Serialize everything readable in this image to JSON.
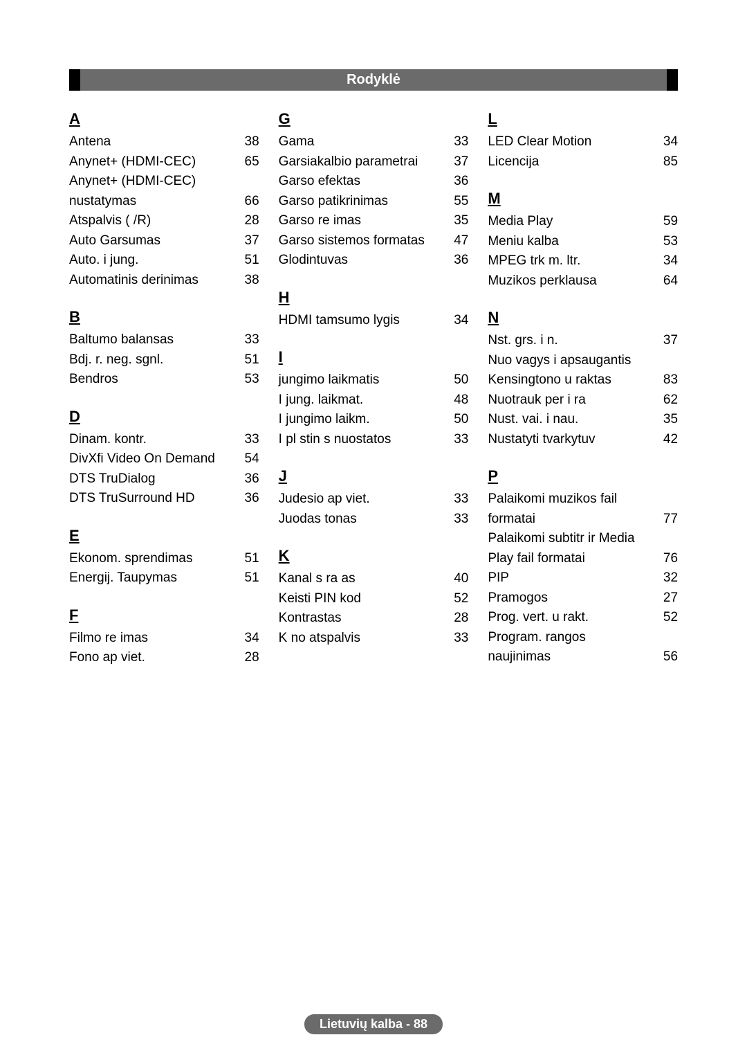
{
  "title": "Rodyklė",
  "footer": "Lietuvių kalba - 88",
  "colors": {
    "bar_bg": "#6b6b6b",
    "bar_border": "#000000",
    "text": "#000000",
    "title_text": "#ffffff",
    "page_bg": "#ffffff"
  },
  "typography": {
    "title_fontsize": 20,
    "letter_fontsize": 22,
    "entry_fontsize": 19,
    "footer_fontsize": 18
  },
  "columns": [
    {
      "sections": [
        {
          "letter": "A",
          "entries": [
            {
              "label": "Antena",
              "page": "38"
            },
            {
              "label": "Anynet+ (HDMI-CEC)",
              "page": "65"
            },
            {
              "label": "Anynet+ (HDMI-CEC) nustatymas",
              "page": "66"
            },
            {
              "label": "Atspalvis ( /R)",
              "page": "28"
            },
            {
              "label": "Auto Garsumas",
              "page": "37"
            },
            {
              "label": "Auto. i jung.",
              "page": "51"
            },
            {
              "label": "Automatinis derinimas",
              "page": "38"
            }
          ]
        },
        {
          "letter": "B",
          "entries": [
            {
              "label": "Baltumo balansas",
              "page": "33"
            },
            {
              "label": "Bdj. r. neg. sgnl.",
              "page": "51"
            },
            {
              "label": "Bendros",
              "page": "53"
            }
          ]
        },
        {
          "letter": "D",
          "entries": [
            {
              "label": "Dinam. kontr.",
              "page": "33"
            },
            {
              "label": "DivXfi Video On Demand",
              "page": "54"
            },
            {
              "label": "DTS TruDialog",
              "page": "36"
            },
            {
              "label": "DTS TruSurround HD",
              "page": "36"
            }
          ]
        },
        {
          "letter": "E",
          "entries": [
            {
              "label": "Ekonom. sprendimas",
              "page": "51"
            },
            {
              "label": "Energij. Taupymas",
              "page": "51"
            }
          ]
        },
        {
          "letter": "F",
          "entries": [
            {
              "label": "Filmo re imas",
              "page": "34"
            },
            {
              "label": "Fono ap viet.",
              "page": "28"
            }
          ]
        }
      ]
    },
    {
      "sections": [
        {
          "letter": "G",
          "entries": [
            {
              "label": "Gama",
              "page": "33"
            },
            {
              "label": "Garsiakalbio parametrai",
              "page": "37"
            },
            {
              "label": "Garso efektas",
              "page": "36"
            },
            {
              "label": "Garso patikrinimas",
              "page": "55"
            },
            {
              "label": "Garso re imas",
              "page": "35"
            },
            {
              "label": "Garso sistemos formatas",
              "page": "47"
            },
            {
              "label": "Glodintuvas",
              "page": "36"
            }
          ]
        },
        {
          "letter": "H",
          "entries": [
            {
              "label": "HDMI tamsumo lygis",
              "page": "34"
            }
          ]
        },
        {
          "letter": "I",
          "entries": [
            {
              "label": " jungimo laikmatis",
              "page": "50"
            },
            {
              "label": "I jung. laikmat.",
              "page": "48"
            },
            {
              "label": "I jungimo laikm.",
              "page": "50"
            },
            {
              "label": "I pl stin s nuostatos",
              "page": "33"
            }
          ]
        },
        {
          "letter": "J",
          "entries": [
            {
              "label": "Judesio ap viet.",
              "page": "33"
            },
            {
              "label": "Juodas tonas",
              "page": "33"
            }
          ]
        },
        {
          "letter": "K",
          "entries": [
            {
              "label": "Kanal  s ra as",
              "page": "40"
            },
            {
              "label": "Keisti PIN kod",
              "page": "52"
            },
            {
              "label": "Kontrastas",
              "page": "28"
            },
            {
              "label": "K no atspalvis",
              "page": "33"
            }
          ]
        }
      ]
    },
    {
      "sections": [
        {
          "letter": "L",
          "entries": [
            {
              "label": " LED Clear Motion",
              "page": "34"
            },
            {
              "label": "Licencija",
              "page": "85"
            }
          ]
        },
        {
          "letter": "M",
          "entries": [
            {
              "label": "Media Play",
              "page": "59"
            },
            {
              "label": "Meniu kalba",
              "page": "53"
            },
            {
              "label": "MPEG trk m.  ltr.",
              "page": "34"
            },
            {
              "label": "Muzikos perklausa",
              "page": "64"
            }
          ]
        },
        {
          "letter": "N",
          "entries": [
            {
              "label": "Nst. grs. i  n.",
              "page": "37"
            },
            {
              "label": "Nuo vagys i apsaugantis Kensingtono u raktas",
              "page": "83"
            },
            {
              "label": "Nuotrauk  per i ra",
              "page": "62"
            },
            {
              "label": "Nust. vai. i  nau.",
              "page": "35"
            },
            {
              "label": "Nustatyti tvarkytuv",
              "page": "42"
            }
          ]
        },
        {
          "letter": "P",
          "entries": [
            {
              "label": "Palaikomi muzikos fail  formatai",
              "page": "77"
            },
            {
              "label": "Palaikomi subtitr  ir  Media Play  fail  formatai",
              "page": "76"
            },
            {
              "label": "PIP",
              "page": "32"
            },
            {
              "label": "Pramogos",
              "page": "27"
            },
            {
              "label": "Prog.  vert. u rakt.",
              "page": "52"
            },
            {
              "label": "Program.  rangos naujinimas",
              "page": "56"
            }
          ]
        }
      ]
    }
  ]
}
